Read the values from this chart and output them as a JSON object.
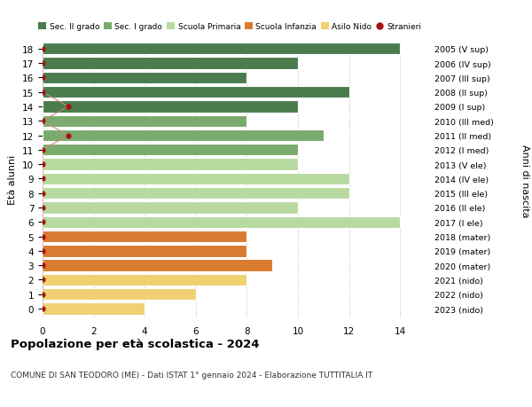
{
  "ages": [
    18,
    17,
    16,
    15,
    14,
    13,
    12,
    11,
    10,
    9,
    8,
    7,
    6,
    5,
    4,
    3,
    2,
    1,
    0
  ],
  "years": [
    "2005 (V sup)",
    "2006 (IV sup)",
    "2007 (III sup)",
    "2008 (II sup)",
    "2009 (I sup)",
    "2010 (III med)",
    "2011 (II med)",
    "2012 (I med)",
    "2013 (V ele)",
    "2014 (IV ele)",
    "2015 (III ele)",
    "2016 (II ele)",
    "2017 (I ele)",
    "2018 (mater)",
    "2019 (mater)",
    "2020 (mater)",
    "2021 (nido)",
    "2022 (nido)",
    "2023 (nido)"
  ],
  "values": [
    14,
    10,
    8,
    12,
    10,
    8,
    11,
    10,
    10,
    12,
    12,
    10,
    14,
    8,
    8,
    9,
    8,
    6,
    4
  ],
  "bar_colors": [
    "#4a7c4e",
    "#4a7c4e",
    "#4a7c4e",
    "#4a7c4e",
    "#4a7c4e",
    "#7aab6e",
    "#7aab6e",
    "#7aab6e",
    "#b8d9a0",
    "#b8d9a0",
    "#b8d9a0",
    "#b8d9a0",
    "#b8d9a0",
    "#d97b30",
    "#d97b30",
    "#d97b30",
    "#f0d070",
    "#f0d070",
    "#f0d070"
  ],
  "stranieri_values_x": [
    0,
    0,
    0,
    0,
    1,
    0,
    1,
    0,
    0,
    0,
    0,
    0,
    0,
    0,
    0,
    0,
    0,
    0,
    0
  ],
  "title": "Popolazione per età scolastica - 2024",
  "subtitle": "COMUNE DI SAN TEODORO (ME) - Dati ISTAT 1° gennaio 2024 - Elaborazione TUTTITALIA.IT",
  "ylabel": "Età alunni",
  "right_label": "Anni di nascita",
  "xlim": [
    0,
    15
  ],
  "xticks": [
    0,
    2,
    4,
    6,
    8,
    10,
    12,
    14
  ],
  "legend_labels": [
    "Sec. II grado",
    "Sec. I grado",
    "Scuola Primaria",
    "Scuola Infanzia",
    "Asilo Nido",
    "Stranieri"
  ],
  "legend_colors": [
    "#4a7c4e",
    "#7aab6e",
    "#b8d9a0",
    "#d97b30",
    "#f0d070",
    "#aa1111"
  ],
  "bar_height": 0.82,
  "bg_color": "#ffffff",
  "grid_color": "#cccccc",
  "stranieri_color": "#aa1111",
  "stranieri_line_color": "#cc8877"
}
